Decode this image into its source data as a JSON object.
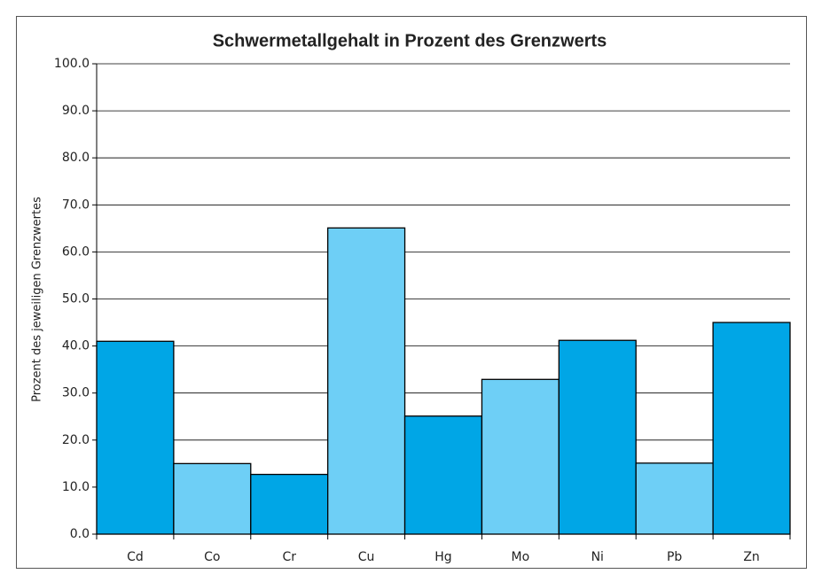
{
  "chart_data": {
    "type": "bar",
    "title": "Schwermetallgehalt in Prozent des Grenzwerts",
    "y_label": "Prozent des jeweiligen Grenzwertes",
    "categories": [
      "Cd",
      "Co",
      "Cr",
      "Cu",
      "Hg",
      "Mo",
      "Ni",
      "Pb",
      "Zn"
    ],
    "values": [
      41.0,
      15.0,
      12.7,
      65.1,
      25.1,
      32.9,
      41.2,
      15.1,
      45.0
    ],
    "colors": [
      "#00a6e6",
      "#6ecff6",
      "#00a6e6",
      "#6ecff6",
      "#00a6e6",
      "#6ecff6",
      "#00a6e6",
      "#6ecff6",
      "#00a6e6"
    ],
    "ylim": [
      0,
      100
    ],
    "yticks": [
      {
        "value": 0,
        "label": "0.0"
      },
      {
        "value": 10,
        "label": "10.0"
      },
      {
        "value": 20,
        "label": "20.0"
      },
      {
        "value": 30,
        "label": "30.0"
      },
      {
        "value": 40,
        "label": "40.0"
      },
      {
        "value": 50,
        "label": "50.0"
      },
      {
        "value": 60,
        "label": "60.0"
      },
      {
        "value": 70,
        "label": "70.0"
      },
      {
        "value": 80,
        "label": "80.0"
      },
      {
        "value": 90,
        "label": "90.0"
      },
      {
        "value": 100,
        "label": "100.0"
      }
    ],
    "grid": true
  }
}
